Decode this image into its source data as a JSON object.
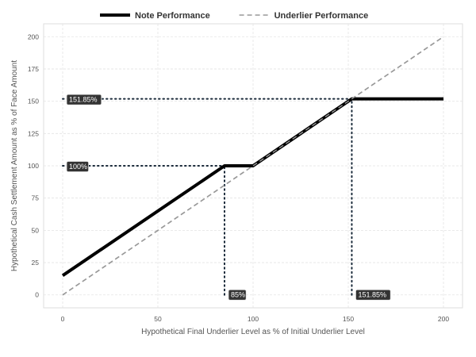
{
  "chart_data": {
    "type": "line",
    "xlabel": "Hypothetical Final Underlier Level as % of Initial Underlier Level",
    "ylabel": "Hypothetical Cash Settlement Amount as % of Face Amount",
    "xlim": [
      -10,
      210
    ],
    "ylim": [
      -10,
      210
    ],
    "x_ticks": [
      0,
      50,
      100,
      150,
      200
    ],
    "y_ticks": [
      0,
      25,
      50,
      75,
      100,
      125,
      150,
      175,
      200
    ],
    "grid": true,
    "legend_position": "top",
    "series": [
      {
        "name": "Note Performance",
        "style": "solid",
        "color": "#000000",
        "x": [
          0,
          85,
          100,
          151.85,
          200
        ],
        "y": [
          15,
          100,
          100,
          151.85,
          151.85
        ]
      },
      {
        "name": "Underlier Performance",
        "style": "dashed",
        "color": "#999999",
        "x": [
          0,
          200
        ],
        "y": [
          0,
          200
        ]
      }
    ],
    "annotations": [
      {
        "text": "151.85%",
        "axis": "y",
        "value": 151.85,
        "line_to_x": 151.85
      },
      {
        "text": "100%",
        "axis": "y",
        "value": 100,
        "line_to_x": 85
      },
      {
        "text": "85%",
        "axis": "x",
        "value": 85,
        "line_to_y": 100
      },
      {
        "text": "151.85%",
        "axis": "x",
        "value": 151.85,
        "line_to_y": 151.85
      }
    ]
  }
}
